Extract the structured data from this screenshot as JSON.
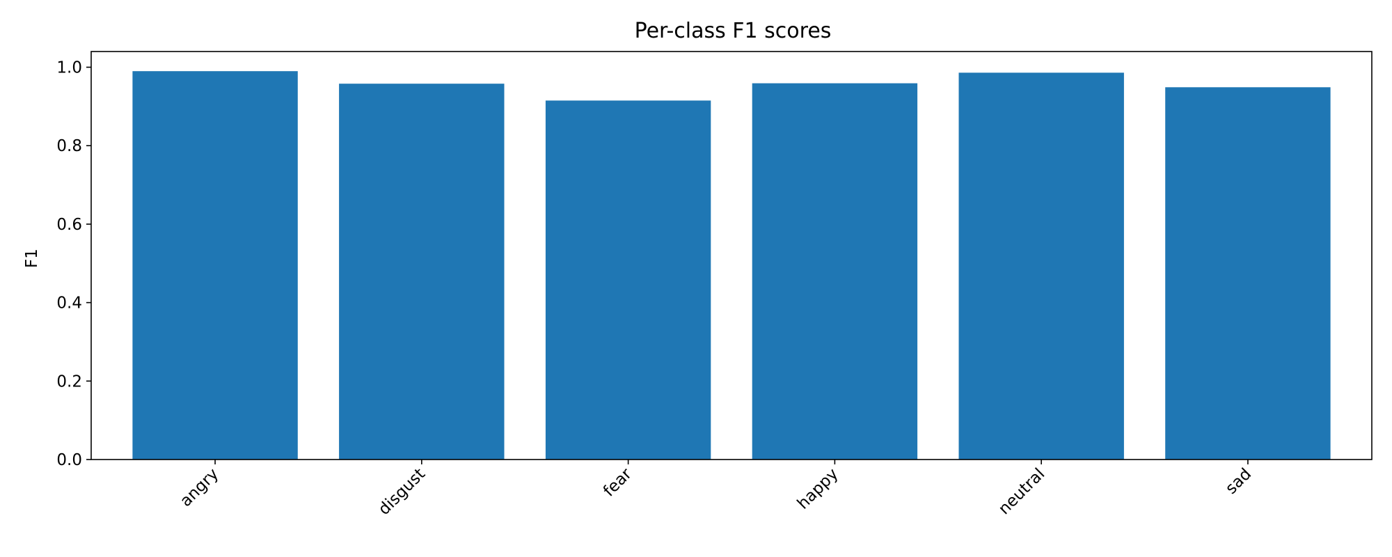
{
  "chart_data": {
    "type": "bar",
    "title": "Per-class F1 scores",
    "xlabel": "",
    "ylabel": "F1",
    "categories": [
      "angry",
      "disgust",
      "fear",
      "happy",
      "neutral",
      "sad"
    ],
    "values": [
      0.99,
      0.958,
      0.915,
      0.959,
      0.986,
      0.949
    ],
    "ylim": [
      0,
      1.04
    ],
    "yticks": [
      0.0,
      0.2,
      0.4,
      0.6,
      0.8,
      1.0
    ],
    "ytick_labels": [
      "0.0",
      "0.2",
      "0.4",
      "0.6",
      "0.8",
      "1.0"
    ],
    "bar_color": "#1f77b4",
    "grid": false,
    "legend": "none"
  }
}
